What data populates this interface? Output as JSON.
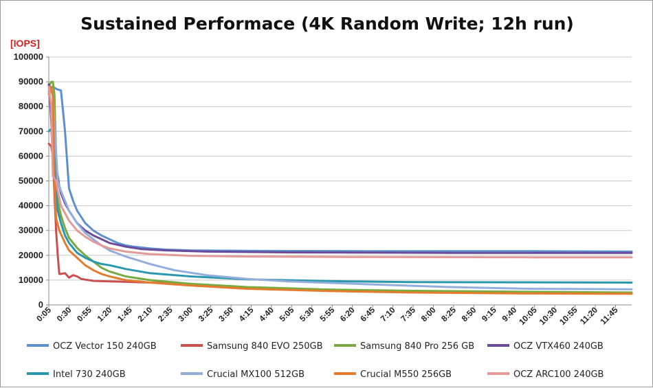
{
  "chart_data": {
    "type": "line",
    "title": "Sustained Performace (4K Random Write; 12h run)",
    "ylabel": "[IOPS]",
    "xlabel": "",
    "ylim": [
      0,
      100000
    ],
    "yticks": [
      0,
      10000,
      20000,
      30000,
      40000,
      50000,
      60000,
      70000,
      80000,
      90000,
      100000
    ],
    "xlim": [
      5,
      725
    ],
    "x_unit": "minutes",
    "xtick_labels": [
      "0:05",
      "0:30",
      "0:55",
      "1:20",
      "1:45",
      "2:10",
      "2:35",
      "3:00",
      "3:25",
      "3:50",
      "4:15",
      "4:40",
      "5:05",
      "5:30",
      "5:55",
      "6:20",
      "6:45",
      "7:10",
      "7:35",
      "8:00",
      "8:25",
      "8:50",
      "9:15",
      "9:40",
      "10:05",
      "10:30",
      "10:55",
      "11:20",
      "11:45"
    ],
    "xtick_values": [
      5,
      30,
      55,
      80,
      105,
      130,
      155,
      180,
      205,
      230,
      255,
      280,
      305,
      330,
      355,
      380,
      405,
      430,
      455,
      480,
      505,
      530,
      555,
      580,
      605,
      630,
      655,
      680,
      705
    ],
    "grid": "horizontal",
    "legend_position": "bottom",
    "series": [
      {
        "name": "OCZ Vector 150 240GB",
        "color": "#5b8fd0",
        "points": [
          [
            5,
            86000
          ],
          [
            10,
            88000
          ],
          [
            15,
            87000
          ],
          [
            20,
            86500
          ],
          [
            25,
            70000
          ],
          [
            30,
            47000
          ],
          [
            35,
            42000
          ],
          [
            40,
            38000
          ],
          [
            50,
            33000
          ],
          [
            60,
            30000
          ],
          [
            70,
            28000
          ],
          [
            80,
            26500
          ],
          [
            90,
            25000
          ],
          [
            100,
            24000
          ],
          [
            110,
            23500
          ],
          [
            130,
            22800
          ],
          [
            150,
            22300
          ],
          [
            180,
            22000
          ],
          [
            250,
            21800
          ],
          [
            400,
            21700
          ],
          [
            600,
            21700
          ],
          [
            725,
            21500
          ]
        ]
      },
      {
        "name": "Samsung 840 EVO 250GB",
        "color": "#c9504e",
        "points": [
          [
            5,
            65000
          ],
          [
            8,
            64000
          ],
          [
            10,
            60000
          ],
          [
            12,
            45000
          ],
          [
            14,
            30000
          ],
          [
            16,
            20000
          ],
          [
            18,
            12500
          ],
          [
            20,
            12500
          ],
          [
            25,
            12800
          ],
          [
            30,
            11000
          ],
          [
            35,
            12000
          ],
          [
            40,
            11500
          ],
          [
            45,
            10500
          ],
          [
            50,
            10200
          ],
          [
            60,
            9700
          ],
          [
            80,
            9500
          ],
          [
            100,
            9300
          ],
          [
            150,
            8800
          ],
          [
            200,
            7500
          ],
          [
            300,
            6200
          ],
          [
            400,
            5600
          ],
          [
            500,
            5200
          ],
          [
            600,
            5000
          ],
          [
            725,
            4800
          ]
        ]
      },
      {
        "name": "Samsung 840 Pro 256 GB",
        "color": "#77ab3f",
        "points": [
          [
            5,
            88000
          ],
          [
            8,
            90000
          ],
          [
            10,
            90000
          ],
          [
            12,
            85000
          ],
          [
            14,
            60000
          ],
          [
            16,
            42000
          ],
          [
            20,
            36000
          ],
          [
            25,
            31000
          ],
          [
            30,
            27000
          ],
          [
            40,
            23000
          ],
          [
            50,
            20000
          ],
          [
            60,
            17500
          ],
          [
            70,
            15000
          ],
          [
            80,
            13500
          ],
          [
            100,
            11500
          ],
          [
            130,
            10000
          ],
          [
            180,
            8500
          ],
          [
            250,
            7200
          ],
          [
            350,
            6200
          ],
          [
            450,
            5700
          ],
          [
            600,
            5300
          ],
          [
            725,
            5000
          ]
        ]
      },
      {
        "name": "OCZ VTX460 240GB",
        "color": "#6a4a9a",
        "points": [
          [
            5,
            89000
          ],
          [
            7,
            80000
          ],
          [
            10,
            62000
          ],
          [
            12,
            57000
          ],
          [
            14,
            56000
          ],
          [
            16,
            52000
          ],
          [
            18,
            48000
          ],
          [
            20,
            45000
          ],
          [
            25,
            41000
          ],
          [
            30,
            38000
          ],
          [
            40,
            33000
          ],
          [
            50,
            30000
          ],
          [
            60,
            28000
          ],
          [
            70,
            26500
          ],
          [
            80,
            25000
          ],
          [
            100,
            23500
          ],
          [
            120,
            22500
          ],
          [
            150,
            22000
          ],
          [
            200,
            21500
          ],
          [
            300,
            21200
          ],
          [
            500,
            21000
          ],
          [
            725,
            21000
          ]
        ]
      },
      {
        "name": "Intel 730 240GB",
        "color": "#2a98ac",
        "points": [
          [
            5,
            70000
          ],
          [
            8,
            71000
          ],
          [
            10,
            63000
          ],
          [
            12,
            62000
          ],
          [
            14,
            45000
          ],
          [
            16,
            38000
          ],
          [
            20,
            33000
          ],
          [
            25,
            28000
          ],
          [
            30,
            25000
          ],
          [
            40,
            21000
          ],
          [
            50,
            19000
          ],
          [
            60,
            17500
          ],
          [
            70,
            16500
          ],
          [
            80,
            16000
          ],
          [
            100,
            14500
          ],
          [
            130,
            12800
          ],
          [
            180,
            11500
          ],
          [
            250,
            10300
          ],
          [
            350,
            9600
          ],
          [
            450,
            9200
          ],
          [
            600,
            9100
          ],
          [
            725,
            9000
          ]
        ]
      },
      {
        "name": "Crucial MX100 512GB",
        "color": "#93aedc",
        "points": [
          [
            5,
            87000
          ],
          [
            10,
            85000
          ],
          [
            14,
            62000
          ],
          [
            16,
            50000
          ],
          [
            20,
            46000
          ],
          [
            25,
            42000
          ],
          [
            30,
            38000
          ],
          [
            40,
            33000
          ],
          [
            50,
            29000
          ],
          [
            60,
            26500
          ],
          [
            70,
            24000
          ],
          [
            80,
            22000
          ],
          [
            100,
            19500
          ],
          [
            130,
            16500
          ],
          [
            160,
            14000
          ],
          [
            200,
            12000
          ],
          [
            250,
            10500
          ],
          [
            300,
            9500
          ],
          [
            400,
            8300
          ],
          [
            500,
            7200
          ],
          [
            600,
            6500
          ],
          [
            725,
            6300
          ]
        ]
      },
      {
        "name": "Crucial M550 256GB",
        "color": "#e57b2e",
        "points": [
          [
            5,
            85000
          ],
          [
            8,
            88000
          ],
          [
            10,
            84000
          ],
          [
            12,
            50000
          ],
          [
            14,
            35000
          ],
          [
            18,
            30000
          ],
          [
            25,
            25000
          ],
          [
            30,
            22000
          ],
          [
            40,
            19000
          ],
          [
            50,
            16000
          ],
          [
            60,
            14000
          ],
          [
            70,
            12500
          ],
          [
            80,
            11500
          ],
          [
            100,
            10000
          ],
          [
            130,
            9000
          ],
          [
            180,
            7800
          ],
          [
            250,
            6500
          ],
          [
            350,
            5600
          ],
          [
            450,
            5000
          ],
          [
            600,
            4600
          ],
          [
            725,
            4500
          ]
        ]
      },
      {
        "name": "OCZ  ARC100 240GB",
        "color": "#e19a98",
        "points": [
          [
            5,
            88000
          ],
          [
            8,
            80000
          ],
          [
            10,
            52000
          ],
          [
            12,
            51000
          ],
          [
            14,
            50000
          ],
          [
            16,
            46000
          ],
          [
            20,
            40000
          ],
          [
            25,
            37000
          ],
          [
            30,
            34000
          ],
          [
            40,
            30000
          ],
          [
            50,
            27500
          ],
          [
            60,
            25500
          ],
          [
            70,
            24000
          ],
          [
            80,
            22800
          ],
          [
            100,
            21500
          ],
          [
            130,
            20500
          ],
          [
            180,
            19800
          ],
          [
            250,
            19500
          ],
          [
            400,
            19300
          ],
          [
            600,
            19200
          ],
          [
            725,
            19200
          ]
        ]
      }
    ]
  }
}
